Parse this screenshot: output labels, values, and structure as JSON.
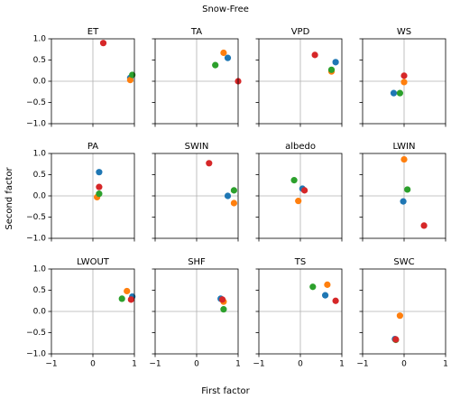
{
  "figure": {
    "title": "Snow-Free",
    "xlabel": "First factor",
    "ylabel": "Second factor",
    "colors": [
      "#1f77b4",
      "#ff7f0e",
      "#2ca02c",
      "#d62728"
    ],
    "xlim": [
      -1,
      1
    ],
    "ylim": [
      -1,
      1
    ],
    "xticks": [
      {
        "value": -1,
        "label": "−1"
      },
      0,
      1
    ],
    "yticks": [
      {
        "value": -1,
        "label": "−1.0"
      },
      {
        "value": -0.5,
        "label": "−0.5"
      },
      {
        "value": 0,
        "label": "0.0"
      },
      {
        "value": 0.5,
        "label": "0.5"
      },
      {
        "value": 1,
        "label": "1.0"
      }
    ],
    "zero_lines": true
  },
  "chart_data": [
    {
      "type": "scatter",
      "title": "ET",
      "x": [
        0.9,
        0.9,
        0.95,
        0.25
      ],
      "y": [
        0.08,
        0.03,
        0.15,
        0.9
      ]
    },
    {
      "type": "scatter",
      "title": "TA",
      "x": [
        0.75,
        0.65,
        0.45,
        1.0
      ],
      "y": [
        0.55,
        0.67,
        0.38,
        0.0
      ]
    },
    {
      "type": "scatter",
      "title": "VPD",
      "x": [
        0.85,
        0.75,
        0.75,
        0.35
      ],
      "y": [
        0.45,
        0.23,
        0.27,
        0.62
      ]
    },
    {
      "type": "scatter",
      "title": "WS",
      "x": [
        -0.25,
        0.0,
        -0.1,
        0.0
      ],
      "y": [
        -0.28,
        -0.02,
        -0.28,
        0.13
      ]
    },
    {
      "type": "scatter",
      "title": "PA",
      "x": [
        0.15,
        0.1,
        0.15,
        0.15
      ],
      "y": [
        0.56,
        -0.03,
        0.05,
        0.21
      ]
    },
    {
      "type": "scatter",
      "title": "SWIN",
      "x": [
        0.75,
        0.9,
        0.9,
        0.3
      ],
      "y": [
        0.0,
        -0.17,
        0.13,
        0.77
      ]
    },
    {
      "type": "scatter",
      "title": "albedo",
      "x": [
        0.05,
        -0.05,
        -0.15,
        0.1
      ],
      "y": [
        0.17,
        -0.12,
        0.37,
        0.13
      ]
    },
    {
      "type": "scatter",
      "title": "LWIN",
      "x": [
        -0.02,
        0.0,
        0.08,
        0.48
      ],
      "y": [
        -0.13,
        0.86,
        0.15,
        -0.7
      ]
    },
    {
      "type": "scatter",
      "title": "LWOUT",
      "x": [
        0.95,
        0.82,
        0.7,
        0.92
      ],
      "y": [
        0.35,
        0.48,
        0.3,
        0.28
      ]
    },
    {
      "type": "scatter",
      "title": "SHF",
      "x": [
        0.58,
        0.65,
        0.65,
        0.62
      ],
      "y": [
        0.3,
        0.23,
        0.05,
        0.28
      ]
    },
    {
      "type": "scatter",
      "title": "TS",
      "x": [
        0.6,
        0.65,
        0.3,
        0.85
      ],
      "y": [
        0.38,
        0.63,
        0.58,
        0.25
      ]
    },
    {
      "type": "scatter",
      "title": "SWC",
      "x": [
        -0.22,
        -0.1,
        -0.2,
        -0.2
      ],
      "y": [
        -0.65,
        -0.1,
        -0.67,
        -0.66
      ]
    }
  ]
}
